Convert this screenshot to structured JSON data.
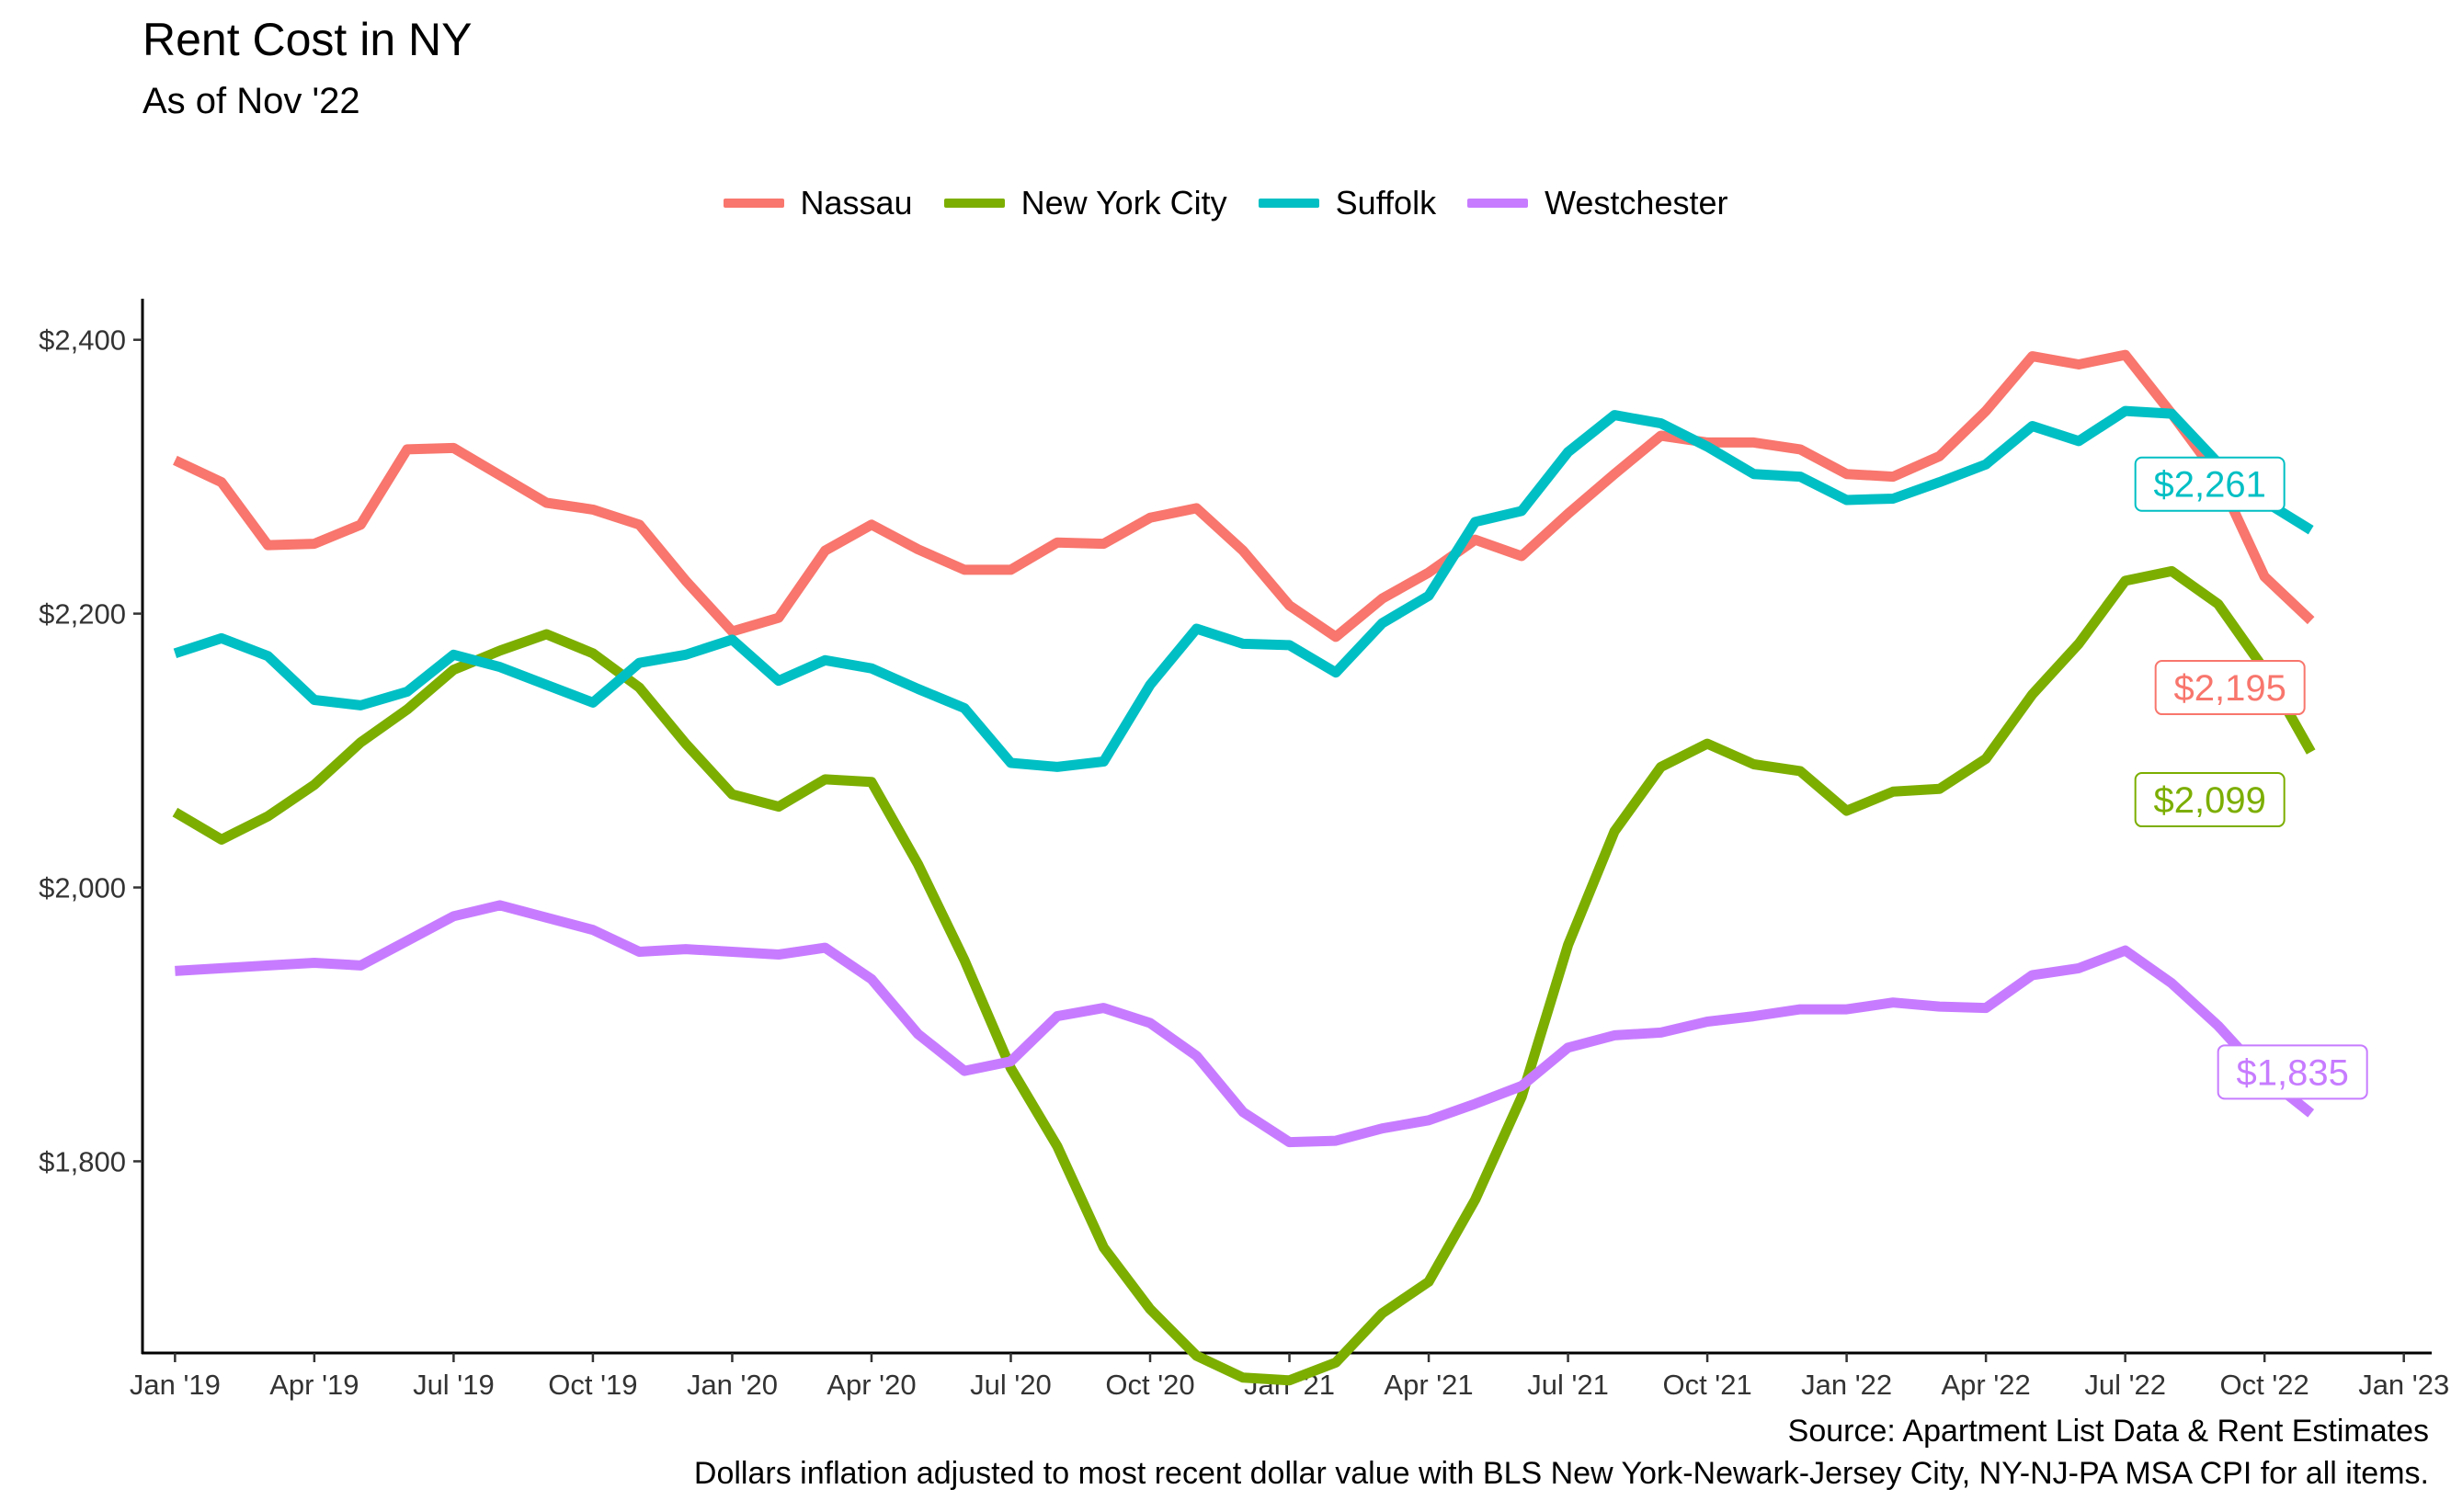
{
  "title": "Rent Cost in NY",
  "subtitle": "As of Nov '22",
  "caption_source": "Source: Apartment List Data & Rent Estimates",
  "caption_note": "Dollars inflation adjusted to most recent dollar value with BLS New York-Newark-Jersey City, NY-NJ-PA MSA CPI for all items.",
  "legend": [
    {
      "name": "Nassau",
      "color": "#F8766D"
    },
    {
      "name": "New York City",
      "color": "#7CAE00"
    },
    {
      "name": "Suffolk",
      "color": "#00BFC4"
    },
    {
      "name": "Westchester",
      "color": "#C77CFF"
    }
  ],
  "chart_data": {
    "type": "line",
    "title": "Rent Cost in NY",
    "subtitle": "As of Nov '22",
    "xlabel": "",
    "ylabel": "",
    "x": [
      "2019-01",
      "2019-02",
      "2019-03",
      "2019-04",
      "2019-05",
      "2019-06",
      "2019-07",
      "2019-08",
      "2019-09",
      "2019-10",
      "2019-11",
      "2019-12",
      "2020-01",
      "2020-02",
      "2020-03",
      "2020-04",
      "2020-05",
      "2020-06",
      "2020-07",
      "2020-08",
      "2020-09",
      "2020-10",
      "2020-11",
      "2020-12",
      "2021-01",
      "2021-02",
      "2021-03",
      "2021-04",
      "2021-05",
      "2021-06",
      "2021-07",
      "2021-08",
      "2021-09",
      "2021-10",
      "2021-11",
      "2021-12",
      "2022-01",
      "2022-02",
      "2022-03",
      "2022-04",
      "2022-05",
      "2022-06",
      "2022-07",
      "2022-08",
      "2022-09",
      "2022-10",
      "2022-11"
    ],
    "xlim": [
      "2018-12",
      "2023-01"
    ],
    "x_ticks": [
      "Jan '19",
      "Apr '19",
      "Jul '19",
      "Oct '19",
      "Jan '20",
      "Apr '20",
      "Jul '20",
      "Oct '20",
      "Jan '21",
      "Apr '21",
      "Jul '21",
      "Oct '21",
      "Jan '22",
      "Apr '22",
      "Jul '22",
      "Oct '22",
      "Jan '23"
    ],
    "ylim": [
      1660,
      2430
    ],
    "y_ticks": [
      1800,
      2000,
      2200,
      2400
    ],
    "y_tick_labels": [
      "$1,800",
      "$2,000",
      "$2,200",
      "$2,400"
    ],
    "grid": false,
    "legend_position": "top",
    "series": [
      {
        "name": "Nassau",
        "color": "#F8766D",
        "end_label": "$2,195",
        "values": [
          2312,
          2296,
          2250,
          2251,
          2265,
          2320,
          2321,
          2301,
          2281,
          2276,
          2265,
          2224,
          2187,
          2197,
          2246,
          2265,
          2247,
          2232,
          2232,
          2252,
          2251,
          2270,
          2277,
          2246,
          2206,
          2183,
          2211,
          2230,
          2254,
          2242,
          2273,
          2302,
          2330,
          2325,
          2325,
          2320,
          2302,
          2300,
          2315,
          2348,
          2388,
          2382,
          2389,
          2346,
          2300,
          2227,
          2195
        ]
      },
      {
        "name": "New York City",
        "color": "#7CAE00",
        "end_label": "$2,099",
        "values": [
          2055,
          2035,
          2052,
          2075,
          2106,
          2130,
          2159,
          2173,
          2185,
          2171,
          2146,
          2105,
          2068,
          2059,
          2079,
          2077,
          2017,
          1947,
          1868,
          1811,
          1737,
          1692,
          1658,
          1642,
          1640,
          1653,
          1689,
          1712,
          1772,
          1847,
          1958,
          2041,
          2088,
          2105,
          2090,
          2085,
          2056,
          2070,
          2072,
          2094,
          2141,
          2178,
          2224,
          2231,
          2207,
          2159,
          2099
        ]
      },
      {
        "name": "Suffolk",
        "color": "#00BFC4",
        "end_label": "$2,261",
        "values": [
          2171,
          2182,
          2169,
          2137,
          2133,
          2143,
          2170,
          2161,
          2148,
          2135,
          2164,
          2170,
          2181,
          2151,
          2166,
          2160,
          2145,
          2131,
          2091,
          2088,
          2092,
          2148,
          2189,
          2178,
          2177,
          2157,
          2193,
          2213,
          2267,
          2275,
          2318,
          2345,
          2339,
          2322,
          2302,
          2300,
          2283,
          2284,
          2296,
          2309,
          2337,
          2326,
          2348,
          2346,
          2310,
          2282,
          2261
        ]
      },
      {
        "name": "Westchester",
        "color": "#C77CFF",
        "end_label": "$1,835",
        "values": [
          1939,
          1941,
          1943,
          1945,
          1943,
          1961,
          1979,
          1987,
          1978,
          1969,
          1953,
          1955,
          1953,
          1951,
          1956,
          1933,
          1893,
          1866,
          1873,
          1906,
          1912,
          1901,
          1877,
          1836,
          1814,
          1815,
          1824,
          1830,
          1842,
          1855,
          1883,
          1892,
          1894,
          1902,
          1906,
          1911,
          1911,
          1916,
          1913,
          1912,
          1936,
          1941,
          1954,
          1930,
          1899,
          1862,
          1835
        ]
      }
    ]
  }
}
